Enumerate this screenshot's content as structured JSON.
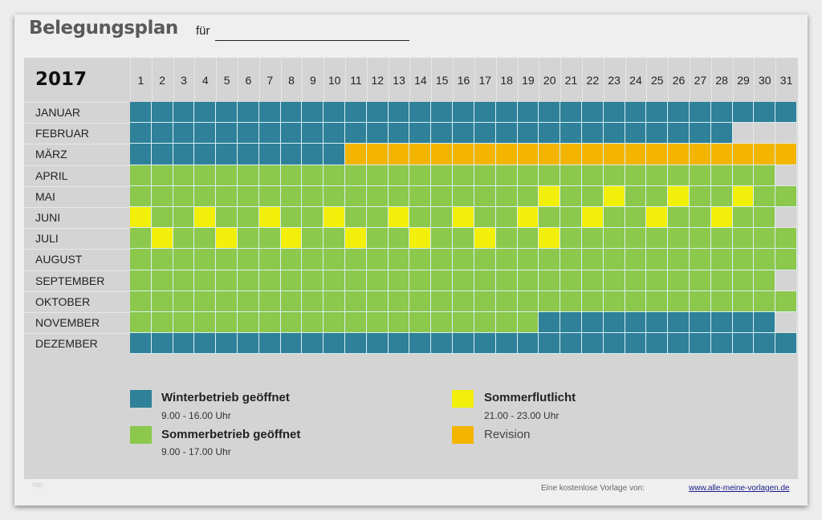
{
  "header": {
    "title": "Belegungsplan",
    "fuer_label": "für",
    "fuer_value": ""
  },
  "year": "2017",
  "days": [
    "1",
    "2",
    "3",
    "4",
    "5",
    "6",
    "7",
    "8",
    "9",
    "10",
    "11",
    "12",
    "13",
    "14",
    "15",
    "16",
    "17",
    "18",
    "19",
    "20",
    "21",
    "22",
    "23",
    "24",
    "25",
    "26",
    "27",
    "28",
    "29",
    "30",
    "31"
  ],
  "colors": {
    "W": "#2e8198",
    "S": "#8cc84b",
    "Y": "#f2ef0a",
    "O": "#f4b500",
    "N": "#d4d4d4"
  },
  "months": [
    {
      "name": "JANUAR",
      "days": "WWWWWWWWWWWWWWWWWWWWWWWWWWWWWWW"
    },
    {
      "name": "FEBRUAR",
      "days": "WWWWWWWWWWWWWWWWWWWWWWWWWWWWNNN"
    },
    {
      "name": "MÄRZ",
      "days": "WWWWWWWWWWOOOOOOOOOOOOOOOOOOOOO"
    },
    {
      "name": "APRIL",
      "days": "SSSSSSSSSSSSSSSSSSSSSSSSSSSSSSN"
    },
    {
      "name": "MAI",
      "days": "SSSSSSSSSSSSSSSSSSSYSSYSSYSSYSS"
    },
    {
      "name": "JUNI",
      "days": "YSSYSSYSSYSSYSSYSSYSSYSSYSSYSSN"
    },
    {
      "name": "JULI",
      "days": "SYSSYSSYSSYSSYSSYSSYSSSSSSSSSSS"
    },
    {
      "name": "AUGUST",
      "days": "SSSSSSSSSSSSSSSSSSSSSSSSSSSSSSS"
    },
    {
      "name": "SEPTEMBER",
      "days": "SSSSSSSSSSSSSSSSSSSSSSSSSSSSSSN"
    },
    {
      "name": "OKTOBER",
      "days": "SSSSSSSSSSSSSSSSSSSSSSSSSSSSSSS"
    },
    {
      "name": "NOVEMBER",
      "days": "SSSSSSSSSSSSSSSSSSSWWWWWWWWWWWN"
    },
    {
      "name": "DEZEMBER",
      "days": "WWWWWWWWWWWWWWWWWWWWWWWWWWWWWWW"
    }
  ],
  "legend": {
    "winter": {
      "label": "Winterbetrieb geöffnet",
      "hours": "9.00 - 16.00 Uhr"
    },
    "summer": {
      "label": "Sommerbetrieb geöffnet",
      "hours": "9.00 - 17.00 Uhr"
    },
    "flutlicht": {
      "label": "Sommerflutlicht",
      "hours": "21.00 - 23.00 Uhr"
    },
    "revision": {
      "label": "Revision"
    }
  },
  "footer": {
    "faint": "http:",
    "text": "Eine kostenlose Vorlage von:",
    "link": "www.alle-meine-vorlagen.de"
  }
}
